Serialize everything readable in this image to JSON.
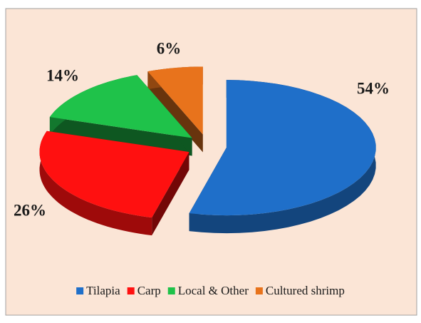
{
  "chart_data": {
    "type": "pie3d",
    "categories": [
      "Tilapia",
      "Carp",
      "Local & Other",
      "Cultured shrimp"
    ],
    "values": [
      54,
      26,
      14,
      6
    ],
    "value_labels": [
      "54%",
      "26%",
      "14%",
      "6%"
    ],
    "colors": [
      "#1f6fc9",
      "#ff1010",
      "#1fc24a",
      "#e8731c"
    ],
    "legend": "bottom"
  }
}
